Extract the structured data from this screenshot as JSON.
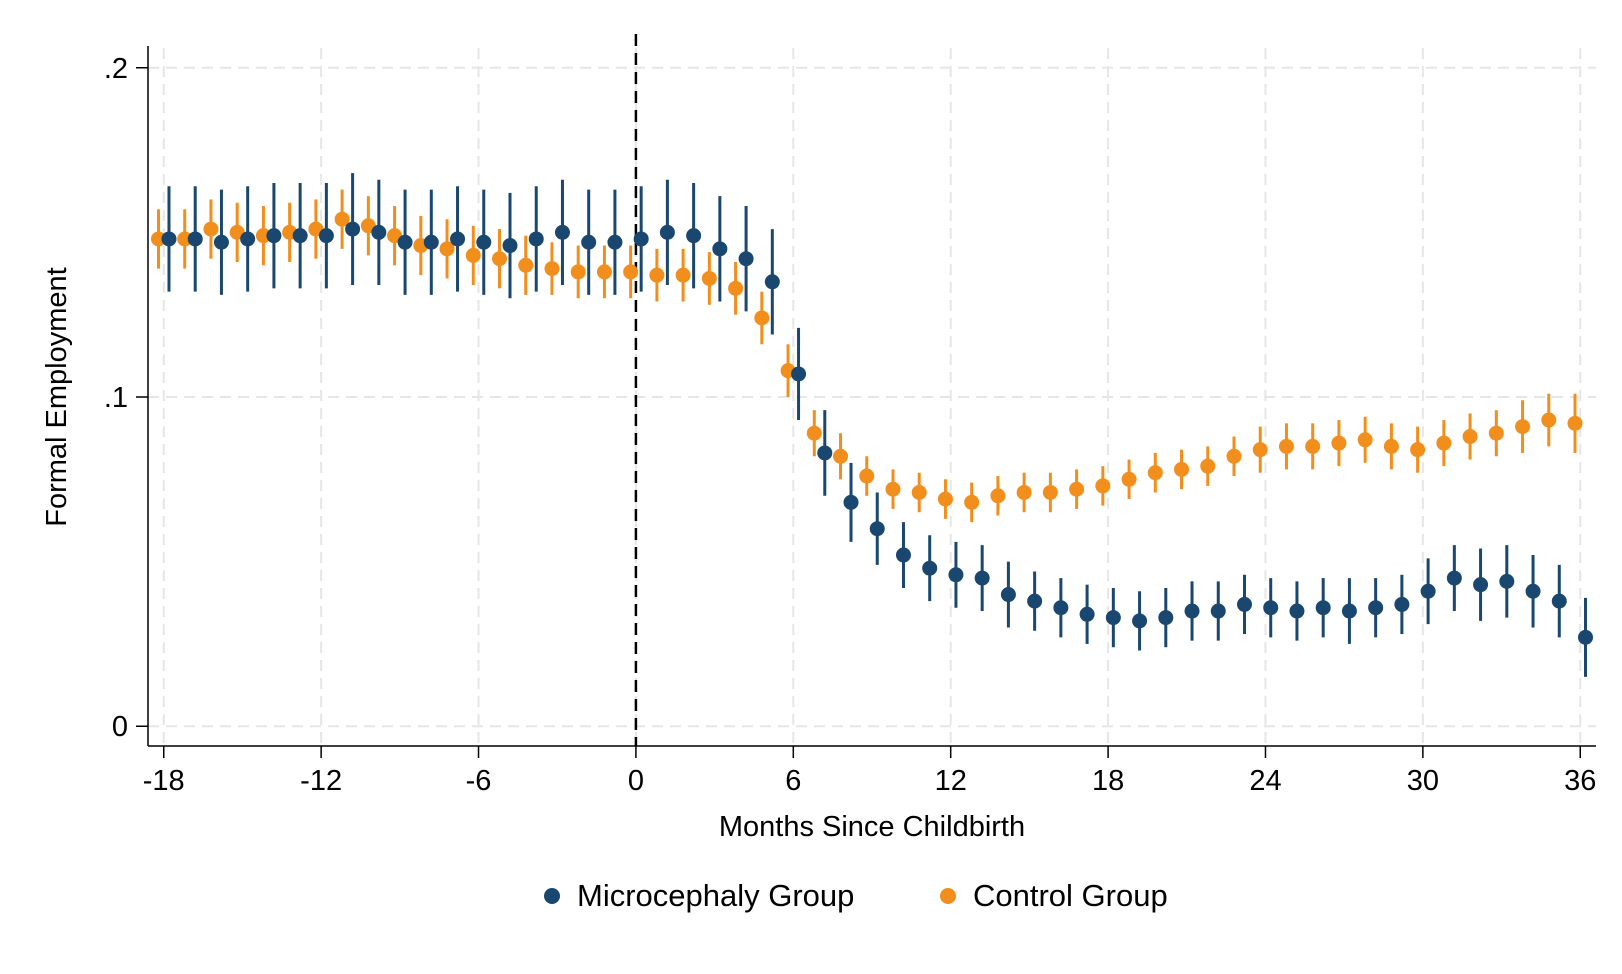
{
  "chart_data": {
    "type": "scatter",
    "title": "",
    "xlabel": "Months Since Childbirth",
    "ylabel": "Formal Employment",
    "xlim": [
      -18.6,
      36.6
    ],
    "ylim": [
      -0.006,
      0.206
    ],
    "xticks": [
      -18,
      -12,
      -6,
      0,
      6,
      12,
      18,
      24,
      30,
      36
    ],
    "xtick_labels": [
      "-18",
      "-12",
      "-6",
      "0",
      "6",
      "12",
      "18",
      "24",
      "30",
      "36"
    ],
    "yticks": [
      0,
      0.1,
      0.2
    ],
    "ytick_labels": [
      "0",
      ".1",
      ".2"
    ],
    "grid": true,
    "reference_line": {
      "x": 0,
      "style": "dashed"
    },
    "legend_position": "bottom",
    "x": [
      -18,
      -17,
      -16,
      -15,
      -14,
      -13,
      -12,
      -11,
      -10,
      -9,
      -8,
      -7,
      -6,
      -5,
      -4,
      -3,
      -2,
      -1,
      0,
      1,
      2,
      3,
      4,
      5,
      6,
      7,
      8,
      9,
      10,
      11,
      12,
      13,
      14,
      15,
      16,
      17,
      18,
      19,
      20,
      21,
      22,
      23,
      24,
      25,
      26,
      27,
      28,
      29,
      30,
      31,
      32,
      33,
      34,
      35,
      36
    ],
    "series": [
      {
        "name": "Microcephaly Group",
        "color": "#1a476f",
        "offset": 0.2,
        "values": [
          0.148,
          0.148,
          0.147,
          0.148,
          0.149,
          0.149,
          0.149,
          0.151,
          0.15,
          0.147,
          0.147,
          0.148,
          0.147,
          0.146,
          0.148,
          0.15,
          0.147,
          0.147,
          0.148,
          0.15,
          0.149,
          0.145,
          0.142,
          0.135,
          0.107,
          0.083,
          0.068,
          0.06,
          0.052,
          0.048,
          0.046,
          0.045,
          0.04,
          0.038,
          0.036,
          0.034,
          0.033,
          0.032,
          0.033,
          0.035,
          0.035,
          0.037,
          0.036,
          0.035,
          0.036,
          0.035,
          0.036,
          0.037,
          0.041,
          0.045,
          0.043,
          0.044,
          0.041,
          0.038,
          0.027
        ],
        "ci_low": [
          0.132,
          0.132,
          0.131,
          0.132,
          0.133,
          0.133,
          0.133,
          0.134,
          0.134,
          0.131,
          0.131,
          0.132,
          0.131,
          0.13,
          0.132,
          0.134,
          0.131,
          0.131,
          0.132,
          0.134,
          0.133,
          0.129,
          0.126,
          0.119,
          0.093,
          0.07,
          0.056,
          0.049,
          0.042,
          0.038,
          0.036,
          0.035,
          0.03,
          0.029,
          0.027,
          0.025,
          0.024,
          0.023,
          0.024,
          0.026,
          0.026,
          0.028,
          0.027,
          0.026,
          0.027,
          0.025,
          0.027,
          0.028,
          0.031,
          0.035,
          0.032,
          0.033,
          0.03,
          0.027,
          0.015
        ],
        "ci_high": [
          0.164,
          0.164,
          0.163,
          0.164,
          0.165,
          0.165,
          0.165,
          0.168,
          0.166,
          0.163,
          0.163,
          0.164,
          0.163,
          0.162,
          0.164,
          0.166,
          0.163,
          0.163,
          0.164,
          0.166,
          0.165,
          0.161,
          0.158,
          0.151,
          0.121,
          0.096,
          0.08,
          0.071,
          0.062,
          0.058,
          0.056,
          0.055,
          0.05,
          0.047,
          0.045,
          0.043,
          0.042,
          0.041,
          0.042,
          0.044,
          0.044,
          0.046,
          0.045,
          0.044,
          0.045,
          0.045,
          0.045,
          0.046,
          0.051,
          0.055,
          0.054,
          0.055,
          0.052,
          0.049,
          0.039
        ]
      },
      {
        "name": "Control Group",
        "color": "#f28e1c",
        "offset": -0.2,
        "values": [
          0.148,
          0.148,
          0.151,
          0.15,
          0.149,
          0.15,
          0.151,
          0.154,
          0.152,
          0.149,
          0.146,
          0.145,
          0.143,
          0.142,
          0.14,
          0.139,
          0.138,
          0.138,
          0.138,
          0.137,
          0.137,
          0.136,
          0.133,
          0.124,
          0.108,
          0.089,
          0.082,
          0.076,
          0.072,
          0.071,
          0.069,
          0.068,
          0.07,
          0.071,
          0.071,
          0.072,
          0.073,
          0.075,
          0.077,
          0.078,
          0.079,
          0.082,
          0.084,
          0.085,
          0.085,
          0.086,
          0.087,
          0.085,
          0.084,
          0.086,
          0.088,
          0.089,
          0.091,
          0.093,
          0.092
        ],
        "ci_low": [
          0.139,
          0.139,
          0.142,
          0.141,
          0.14,
          0.141,
          0.142,
          0.145,
          0.143,
          0.14,
          0.137,
          0.136,
          0.134,
          0.133,
          0.131,
          0.131,
          0.13,
          0.13,
          0.13,
          0.129,
          0.129,
          0.128,
          0.125,
          0.116,
          0.1,
          0.082,
          0.075,
          0.07,
          0.066,
          0.065,
          0.063,
          0.062,
          0.064,
          0.065,
          0.065,
          0.066,
          0.067,
          0.069,
          0.071,
          0.072,
          0.073,
          0.076,
          0.077,
          0.078,
          0.078,
          0.079,
          0.08,
          0.078,
          0.077,
          0.079,
          0.081,
          0.082,
          0.083,
          0.085,
          0.083
        ],
        "ci_high": [
          0.157,
          0.157,
          0.16,
          0.159,
          0.158,
          0.159,
          0.16,
          0.163,
          0.161,
          0.158,
          0.155,
          0.154,
          0.152,
          0.151,
          0.149,
          0.147,
          0.146,
          0.146,
          0.146,
          0.145,
          0.145,
          0.144,
          0.141,
          0.132,
          0.116,
          0.096,
          0.089,
          0.082,
          0.078,
          0.077,
          0.075,
          0.074,
          0.076,
          0.077,
          0.077,
          0.078,
          0.079,
          0.081,
          0.083,
          0.084,
          0.085,
          0.088,
          0.091,
          0.092,
          0.092,
          0.093,
          0.094,
          0.092,
          0.091,
          0.093,
          0.095,
          0.096,
          0.099,
          0.101,
          0.101
        ]
      }
    ]
  }
}
